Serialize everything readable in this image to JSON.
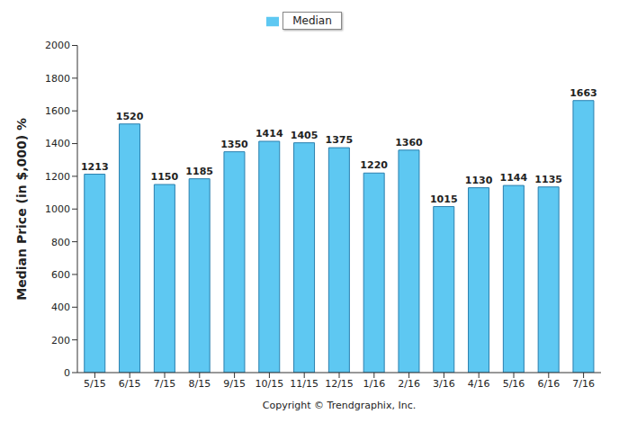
{
  "chart_data": {
    "type": "bar",
    "y_label": "Median Price (in $,000) %",
    "caption": "Copyright © Trendgraphix, Inc.",
    "categories": [
      "5/15",
      "6/15",
      "7/15",
      "8/15",
      "9/15",
      "10/15",
      "11/15",
      "12/15",
      "1/16",
      "2/16",
      "3/16",
      "4/16",
      "5/16",
      "6/16",
      "7/16"
    ],
    "series": [
      {
        "name": "Median",
        "color": "#5ec8f2",
        "values": [
          1213,
          1520,
          1150,
          1185,
          1350,
          1414,
          1405,
          1375,
          1220,
          1360,
          1015,
          1130,
          1144,
          1135,
          1663
        ]
      }
    ],
    "ylim": [
      0,
      2000
    ],
    "yticks": [
      0,
      200,
      400,
      600,
      800,
      1000,
      1200,
      1400,
      1600,
      1800,
      2000
    ],
    "grid": false,
    "legend": "top",
    "data_labels": true
  }
}
